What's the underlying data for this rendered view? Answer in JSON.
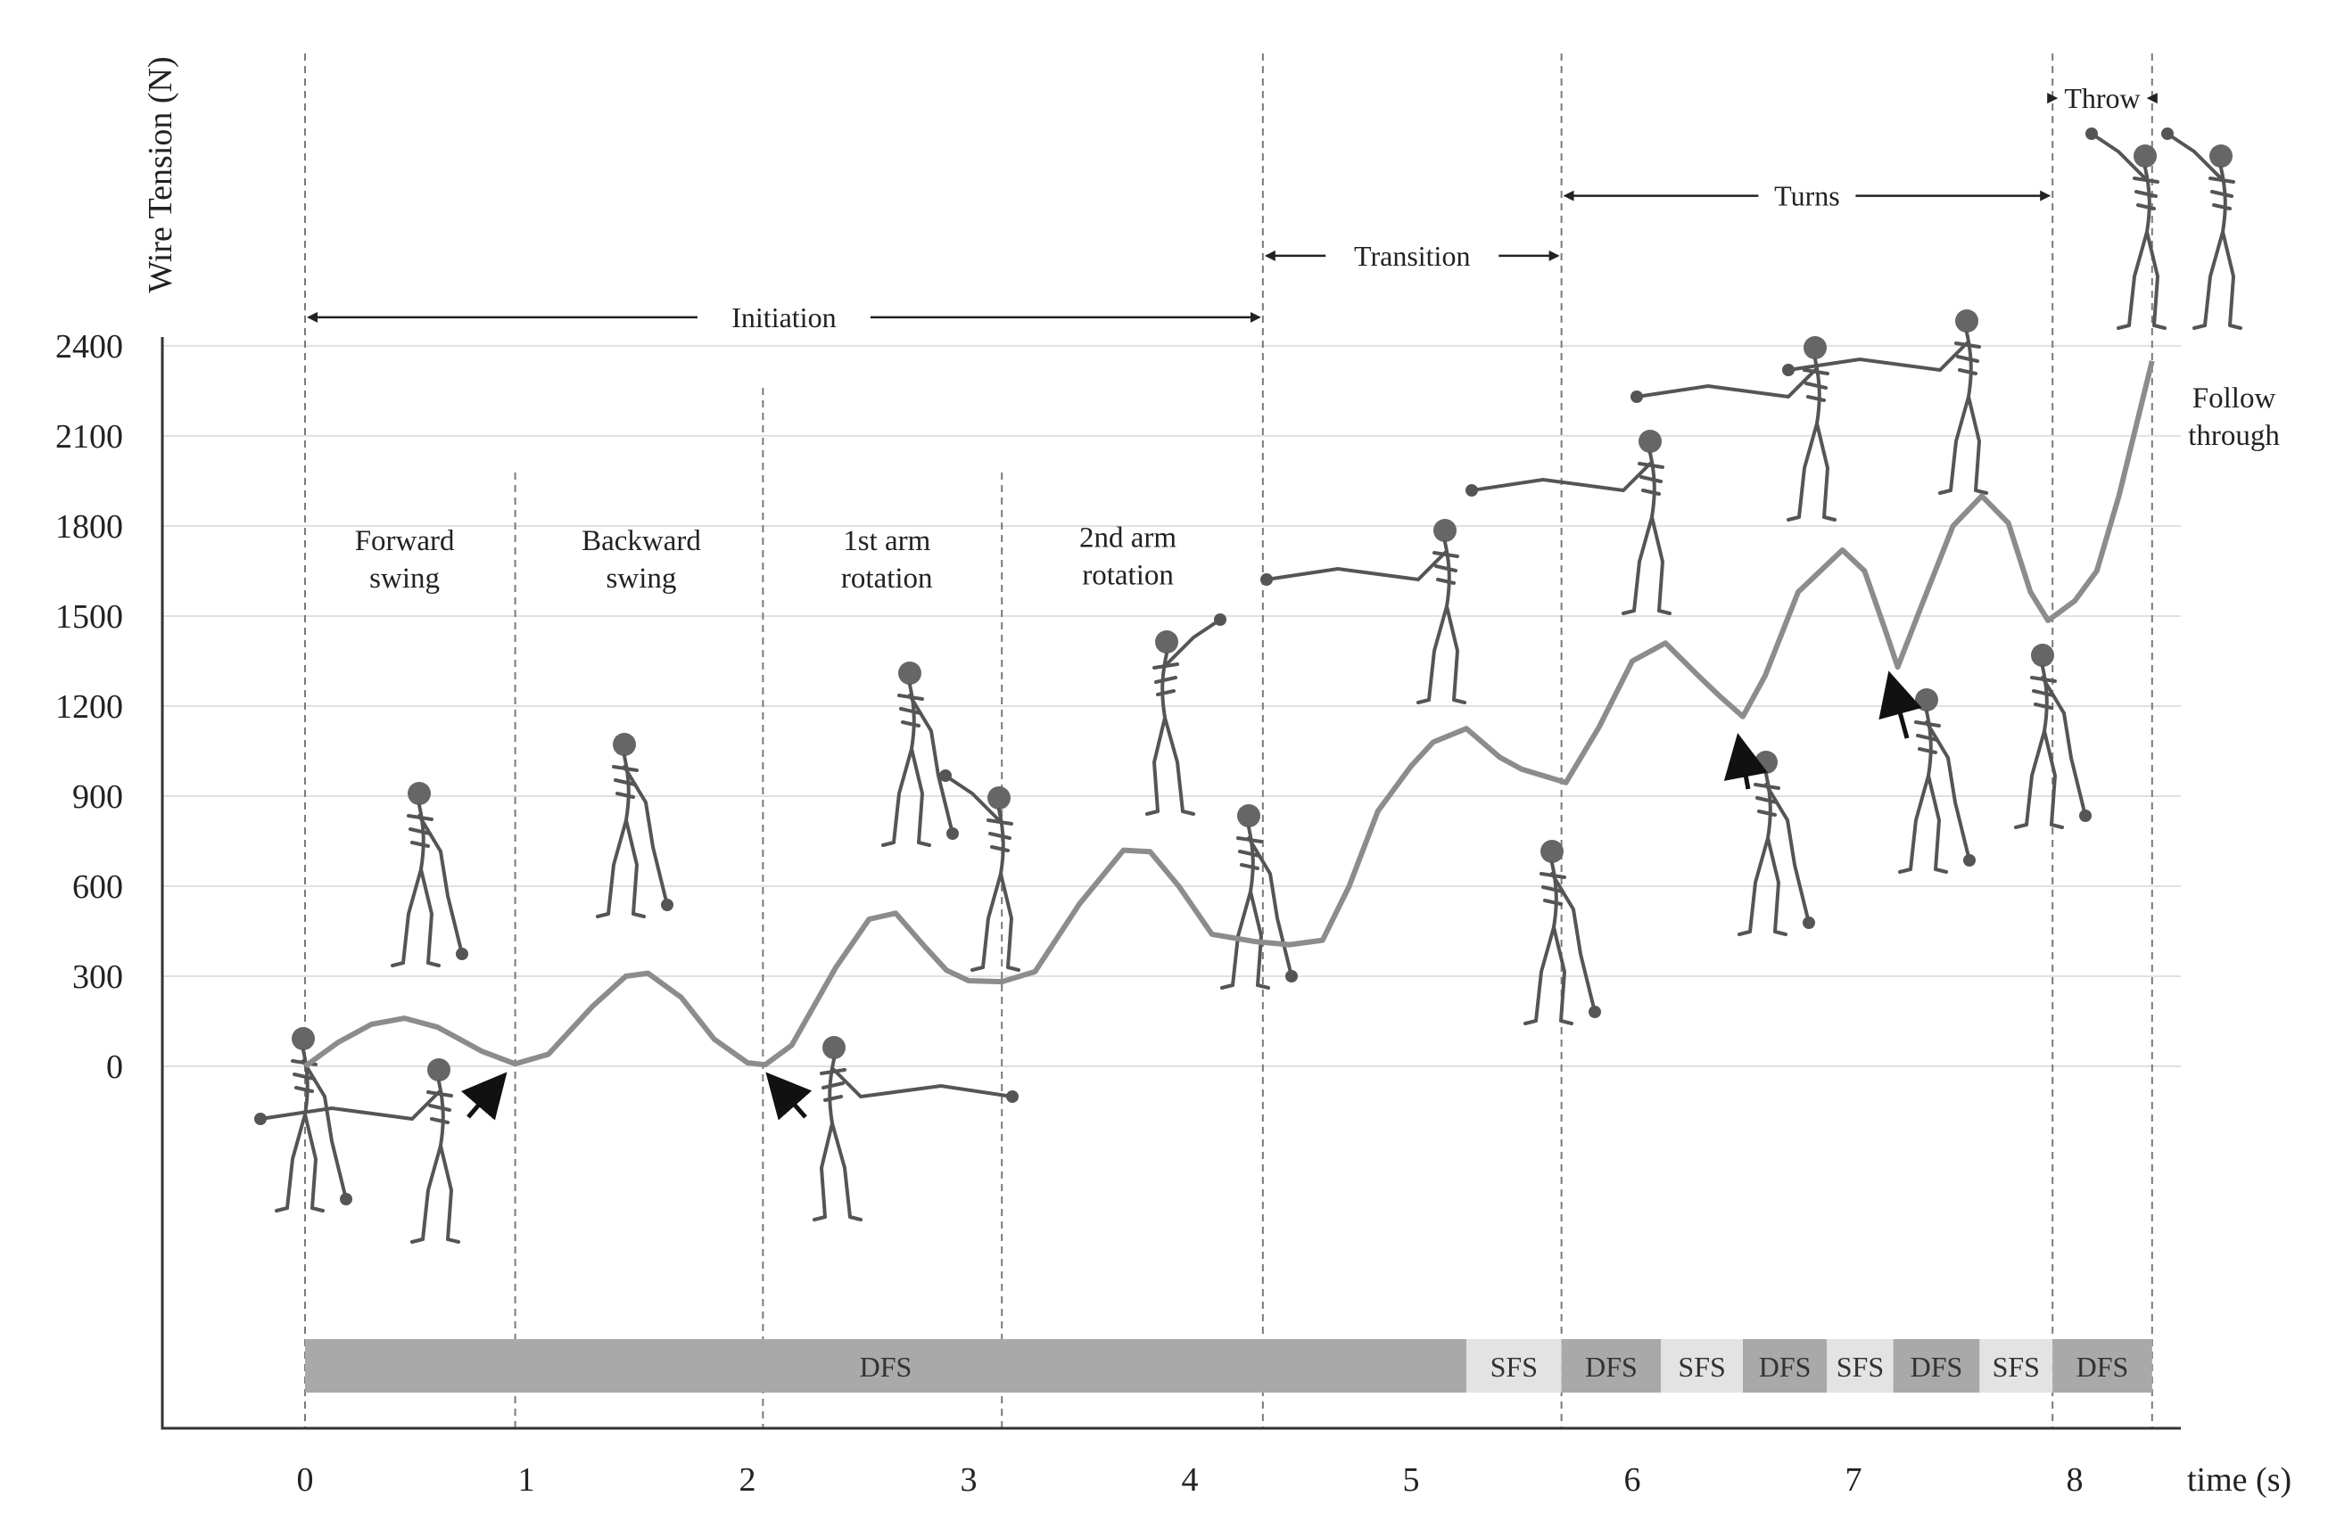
{
  "chart_data": {
    "type": "line",
    "ylabel": "Wire Tension (N)",
    "xlabel": "time (s)",
    "xlim": [
      -0.65,
      8.55
    ],
    "ylim": [
      -1130,
      2400
    ],
    "x_ticks": [
      0,
      1,
      2,
      3,
      4,
      5,
      6,
      7,
      8
    ],
    "y_ticks": [
      0,
      300,
      600,
      900,
      1200,
      1500,
      1800,
      2100,
      2400
    ],
    "grid": true,
    "series": [
      {
        "x": [
          0,
          0.15,
          0.3,
          0.45,
          0.6,
          0.8,
          0.95,
          1.1,
          1.3,
          1.45,
          1.55,
          1.7,
          1.85,
          2.0,
          2.08,
          2.2,
          2.4,
          2.55,
          2.67,
          2.8,
          2.9,
          3.0,
          3.15,
          3.3,
          3.5,
          3.7,
          3.82,
          3.95,
          4.1,
          4.3,
          4.45,
          4.6,
          4.72,
          4.85,
          5.0,
          5.1,
          5.25,
          5.4,
          5.5,
          5.7,
          5.85,
          6.0,
          6.15,
          6.3,
          6.4,
          6.5,
          6.6,
          6.75,
          6.95,
          7.05,
          7.15,
          7.2,
          7.3,
          7.45,
          7.58,
          7.7,
          7.8,
          7.88,
          8.0,
          8.1,
          8.2,
          8.3,
          8.35
        ],
        "y": [
          0,
          80,
          140,
          160,
          130,
          50,
          8,
          40,
          200,
          300,
          310,
          230,
          90,
          12,
          5,
          70,
          330,
          490,
          510,
          400,
          320,
          285,
          282,
          315,
          540,
          720,
          715,
          600,
          440,
          415,
          405,
          420,
          600,
          850,
          1000,
          1080,
          1125,
          1030,
          990,
          945,
          1130,
          1350,
          1410,
          1300,
          1230,
          1165,
          1300,
          1580,
          1720,
          1650,
          1440,
          1330,
          1520,
          1800,
          1900,
          1810,
          1580,
          1485,
          1550,
          1650,
          1900,
          2200,
          2350
        ]
      }
    ],
    "phase_boundaries": [
      0,
      0.95,
      2.07,
      3.15,
      4.33,
      5.68,
      7.9,
      8.35
    ],
    "phase_labels": [
      {
        "lines": [
          "Forward",
          "swing"
        ],
        "x": 0.45,
        "y": 1720
      },
      {
        "lines": [
          "Backward",
          "swing"
        ],
        "x": 1.52,
        "y": 1720
      },
      {
        "lines": [
          "1st arm",
          "rotation"
        ],
        "x": 2.63,
        "y": 1720
      },
      {
        "lines": [
          "2nd arm",
          "rotation"
        ],
        "x": 3.72,
        "y": 1730
      }
    ],
    "spans": [
      {
        "label": "Initiation",
        "x0": 0,
        "x1": 4.33,
        "y": 2495
      },
      {
        "label": "Transition",
        "x0": 4.33,
        "x1": 5.68,
        "y": 2700
      },
      {
        "label": "Turns",
        "x0": 5.68,
        "x1": 7.9,
        "y": 2900
      },
      {
        "label": "Throw",
        "x0": 7.9,
        "x1": 8.35,
        "y": 3225
      }
    ],
    "support_phases": [
      {
        "label": "DFS",
        "x0": 0,
        "x1": 5.25,
        "shade": "#a9a9a9"
      },
      {
        "label": "SFS",
        "x0": 5.25,
        "x1": 5.68,
        "shade": "#e3e3e3"
      },
      {
        "label": "DFS",
        "x0": 5.68,
        "x1": 6.13,
        "shade": "#a9a9a9"
      },
      {
        "label": "SFS",
        "x0": 6.13,
        "x1": 6.5,
        "shade": "#e3e3e3"
      },
      {
        "label": "DFS",
        "x0": 6.5,
        "x1": 6.88,
        "shade": "#a9a9a9"
      },
      {
        "label": "SFS",
        "x0": 6.88,
        "x1": 7.18,
        "shade": "#e3e3e3"
      },
      {
        "label": "DFS",
        "x0": 7.18,
        "x1": 7.57,
        "shade": "#a9a9a9"
      },
      {
        "label": "SFS",
        "x0": 7.57,
        "x1": 7.9,
        "shade": "#e3e3e3"
      },
      {
        "label": "DFS",
        "x0": 7.9,
        "x1": 8.35,
        "shade": "#a9a9a9"
      }
    ],
    "annotations": [
      {
        "lines": [
          "Follow",
          "through"
        ],
        "x": 8.72,
        "y": 2195
      }
    ],
    "curve_color": "#8c8c8c"
  }
}
